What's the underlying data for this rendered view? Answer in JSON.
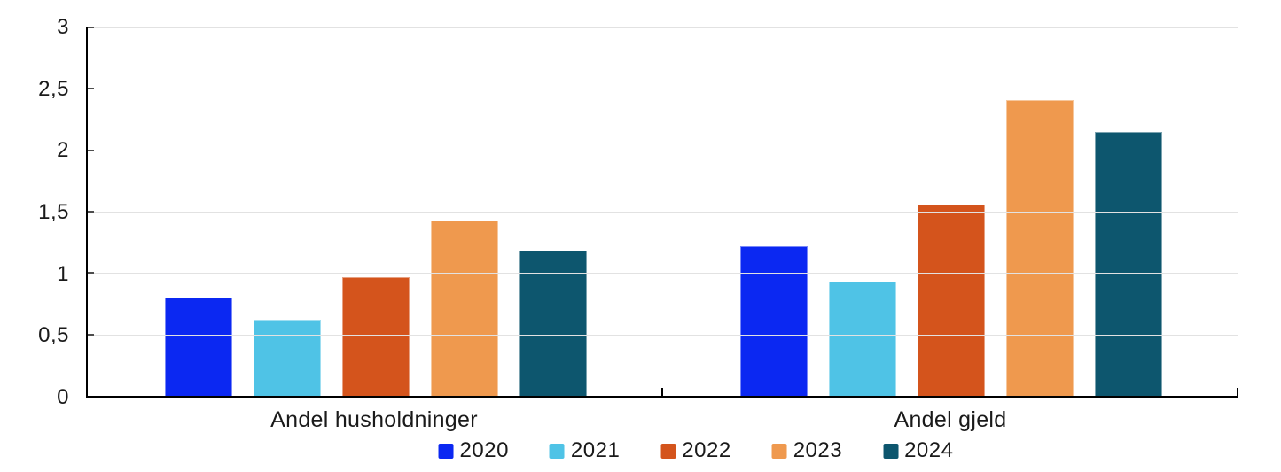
{
  "chart_data": {
    "type": "bar",
    "title": "",
    "categories": [
      "Andel husholdninger",
      "Andel gjeld"
    ],
    "series": [
      {
        "name": "2020",
        "color": "#0b28f2",
        "values": [
          0.8,
          1.22
        ]
      },
      {
        "name": "2021",
        "color": "#4fc3e6",
        "values": [
          0.62,
          0.93
        ]
      },
      {
        "name": "2022",
        "color": "#d4541c",
        "values": [
          0.97,
          1.56
        ]
      },
      {
        "name": "2023",
        "color": "#ef994e",
        "values": [
          1.43,
          2.41
        ]
      },
      {
        "name": "2024",
        "color": "#0d566e",
        "values": [
          1.18,
          2.15
        ]
      }
    ],
    "ylim": [
      0,
      3
    ],
    "ytick_step": 0.5,
    "ytick_labels": [
      "0",
      "0,5",
      "1",
      "1,5",
      "2",
      "2,5",
      "3"
    ],
    "xlabel": "",
    "ylabel": "",
    "grid": true,
    "legend_position": "bottom",
    "decimal_separator": ","
  },
  "style": {
    "axis_color": "#000000",
    "gridline_color": "#e2e2e2",
    "tick_color": "#4d4d4d",
    "background": "#ffffff",
    "text_color": "#1a1a1a"
  }
}
